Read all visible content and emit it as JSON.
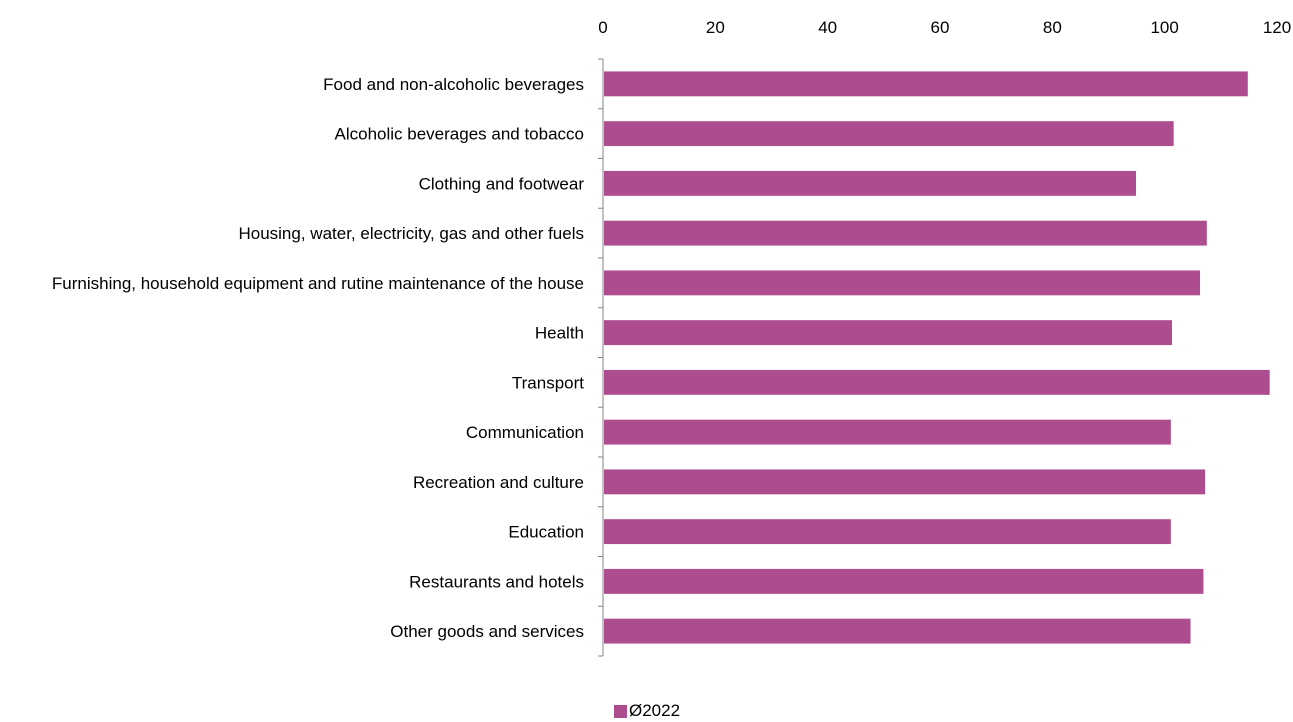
{
  "chart_data": {
    "type": "bar",
    "orientation": "horizontal",
    "categories": [
      "Food and non-alcoholic beverages",
      "Alcoholic beverages and tobacco",
      "Clothing and footwear",
      "Housing, water, electricity, gas and other fuels",
      "Furnishing, household equipment and rutine maintenance of the house",
      "Health",
      "Transport",
      "Communication",
      "Recreation and culture",
      "Education",
      "Restaurants and hotels",
      "Other goods and services"
    ],
    "series": [
      {
        "name": "Ø2022",
        "color": "#AD4C8E",
        "values": [
          114.8,
          101.6,
          94.9,
          107.5,
          106.3,
          101.3,
          118.7,
          101.1,
          107.2,
          101.1,
          106.9,
          104.6
        ]
      }
    ],
    "xlim": [
      0,
      120
    ],
    "xticks": [
      0,
      20,
      40,
      60,
      80,
      100,
      120
    ],
    "axis_position": "top",
    "grid": false,
    "legend_position": "bottom"
  }
}
